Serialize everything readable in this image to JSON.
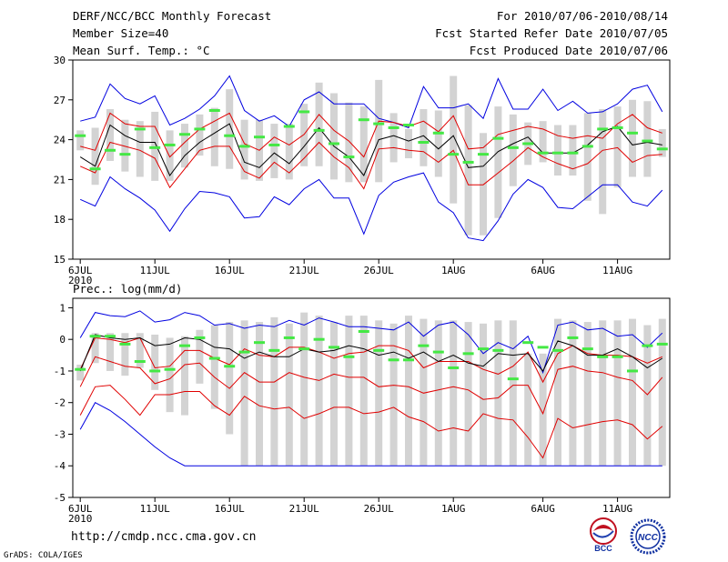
{
  "header": {
    "title": "DERF/NCC/BCC Monthly Forecast",
    "member_size": "Member Size=40",
    "variable": "Mean Surf. Temp.: °C",
    "for_period": "For 2010/07/06-2010/08/14",
    "fcst_started": "Fcst Started Refer Date 2010/07/05",
    "fcst_produced": "Fcst Produced Date 2010/07/06"
  },
  "footer": {
    "url": "http://cmdp.ncc.cma.gov.cn",
    "grads": "GrADS: COLA/IGES",
    "logo_bcc": "BCC",
    "logo_ncc": "NCC"
  },
  "colors": {
    "mean_line": "#000000",
    "spread_line": "#e00000",
    "extreme_line": "#0000e0",
    "box_fill": "#d3d3d3",
    "obs_marker": "#44e844"
  },
  "chart_data": [
    {
      "type": "line",
      "title": "Mean Surf. Temp.: °C",
      "xlabel": "",
      "ylabel": "",
      "x": [
        1,
        2,
        3,
        4,
        5,
        6,
        7,
        8,
        9,
        10,
        11,
        12,
        13,
        14,
        15,
        16,
        17,
        18,
        19,
        20,
        21,
        22,
        23,
        24,
        25,
        26,
        27,
        28,
        29,
        30,
        31,
        32,
        33,
        34,
        35,
        36,
        37,
        38,
        39,
        40
      ],
      "xlim": [
        0.5,
        40.5
      ],
      "ylim": [
        15,
        30
      ],
      "yticks": [
        15,
        18,
        21,
        24,
        27,
        30
      ],
      "ytick_labels": [
        "15",
        "18",
        "21",
        "24",
        "27",
        "30"
      ],
      "xtick_positions": [
        1,
        6,
        11,
        16,
        21,
        26,
        32,
        37
      ],
      "xtick_labels": [
        "6JUL",
        "11JUL",
        "16JUL",
        "21JUL",
        "26JUL",
        "1AUG",
        "6AUG",
        "11AUG"
      ],
      "xtick_sublabel": "2010",
      "series": [
        {
          "name": "max",
          "color": "#0000e0",
          "values": [
            25.4,
            25.7,
            28.2,
            27.1,
            26.7,
            27.3,
            25.1,
            25.6,
            26.3,
            27.3,
            28.8,
            26.2,
            25.4,
            25.8,
            25.0,
            27.0,
            27.6,
            26.7,
            26.7,
            26.7,
            25.6,
            25.3,
            24.9,
            28.0,
            26.4,
            26.4,
            26.7,
            25.6,
            28.6,
            26.3,
            26.3,
            27.8,
            26.2,
            26.9,
            26.0,
            26.1,
            26.7,
            27.8,
            28.1,
            26.1
          ]
        },
        {
          "name": "upper",
          "color": "#e00000",
          "values": [
            23.5,
            23.2,
            26.0,
            25.2,
            25.0,
            25.0,
            22.7,
            23.8,
            24.8,
            25.4,
            26.0,
            23.7,
            23.2,
            24.2,
            23.6,
            24.4,
            25.9,
            24.7,
            23.9,
            22.7,
            25.4,
            25.3,
            25.0,
            25.4,
            24.6,
            25.8,
            23.3,
            23.4,
            24.4,
            24.7,
            25.0,
            24.8,
            24.3,
            24.1,
            24.3,
            24.1,
            25.2,
            25.9,
            24.9,
            24.5
          ]
        },
        {
          "name": "mean",
          "color": "#000000",
          "values": [
            22.7,
            22.0,
            25.1,
            24.3,
            23.8,
            23.8,
            21.3,
            22.8,
            23.8,
            24.5,
            25.2,
            22.3,
            21.9,
            23.0,
            22.2,
            23.5,
            24.9,
            23.5,
            22.7,
            21.3,
            24.0,
            24.3,
            23.9,
            24.3,
            23.3,
            24.3,
            21.9,
            22.0,
            23.1,
            23.7,
            24.2,
            23.0,
            23.0,
            23.0,
            23.6,
            24.6,
            25.0,
            23.6,
            23.8,
            23.6
          ]
        },
        {
          "name": "lower",
          "color": "#e00000",
          "values": [
            22.0,
            21.5,
            23.8,
            23.5,
            23.2,
            22.6,
            20.4,
            21.8,
            23.2,
            23.5,
            23.5,
            21.6,
            21.1,
            22.3,
            21.5,
            22.6,
            23.8,
            22.7,
            21.9,
            20.3,
            23.3,
            23.4,
            23.2,
            23.1,
            22.3,
            23.2,
            20.6,
            20.6,
            21.5,
            22.4,
            23.4,
            22.7,
            22.2,
            21.8,
            22.2,
            23.2,
            23.4,
            22.3,
            22.8,
            22.9
          ]
        },
        {
          "name": "min",
          "color": "#0000e0",
          "values": [
            19.5,
            19.0,
            21.2,
            20.3,
            19.6,
            18.7,
            17.1,
            18.8,
            20.1,
            20.0,
            19.7,
            18.1,
            18.2,
            19.7,
            19.1,
            20.3,
            21.0,
            19.6,
            19.6,
            16.9,
            19.8,
            20.8,
            21.2,
            21.5,
            19.3,
            18.5,
            16.6,
            16.4,
            17.9,
            19.9,
            21.0,
            20.4,
            18.9,
            18.8,
            19.7,
            20.6,
            20.6,
            19.3,
            19.0,
            20.2
          ]
        }
      ],
      "boxes": {
        "low": [
          23.2,
          20.6,
          22.4,
          21.6,
          21.2,
          20.9,
          20.9,
          21.9,
          22.8,
          22.0,
          21.8,
          21.0,
          20.9,
          21.1,
          21.0,
          22.0,
          22.0,
          21.0,
          20.8,
          20.8,
          20.8,
          22.3,
          22.6,
          22.0,
          21.2,
          19.2,
          16.8,
          16.8,
          18.1,
          20.5,
          22.1,
          22.3,
          21.3,
          21.3,
          19.4,
          18.4,
          20.4,
          21.2,
          21.2,
          22.7
        ],
        "high": [
          24.7,
          24.9,
          26.3,
          25.5,
          25.4,
          26.1,
          24.7,
          25.2,
          25.9,
          26.4,
          27.8,
          25.5,
          25.5,
          25.2,
          25.2,
          26.7,
          28.3,
          27.5,
          26.8,
          26.5,
          28.5,
          26.0,
          24.8,
          26.3,
          26.2,
          28.8,
          26.6,
          24.5,
          26.5,
          25.9,
          25.3,
          25.4,
          25.1,
          25.1,
          26.0,
          26.3,
          26.5,
          27.0,
          26.9,
          24.8
        ]
      },
      "obs": [
        24.3,
        21.8,
        23.2,
        22.9,
        24.8,
        23.4,
        23.6,
        24.4,
        24.8,
        26.2,
        24.3,
        23.5,
        24.2,
        23.6,
        25.0,
        26.1,
        24.7,
        23.7,
        22.7,
        25.5,
        25.2,
        24.9,
        25.1,
        23.8,
        24.5,
        22.9,
        22.3,
        22.9,
        24.1,
        23.4,
        23.7,
        23.0,
        23.0,
        23.0,
        23.5,
        24.8,
        24.9,
        24.5,
        23.9,
        23.3
      ]
    },
    {
      "type": "line",
      "title": "Prec.: log(mm/d)",
      "xlabel": "",
      "ylabel": "",
      "x": [
        1,
        2,
        3,
        4,
        5,
        6,
        7,
        8,
        9,
        10,
        11,
        12,
        13,
        14,
        15,
        16,
        17,
        18,
        19,
        20,
        21,
        22,
        23,
        24,
        25,
        26,
        27,
        28,
        29,
        30,
        31,
        32,
        33,
        34,
        35,
        36,
        37,
        38,
        39,
        40
      ],
      "xlim": [
        0.5,
        40.5
      ],
      "ylim": [
        -5,
        1.3
      ],
      "yticks": [
        -5,
        -4,
        -3,
        -2,
        -1,
        0,
        1
      ],
      "ytick_labels": [
        "-5",
        "-4",
        "-3",
        "-2",
        "-1",
        "0",
        "1"
      ],
      "xtick_positions": [
        1,
        6,
        11,
        16,
        21,
        26,
        32,
        37
      ],
      "xtick_labels": [
        "6JUL",
        "11JUL",
        "16JUL",
        "21JUL",
        "26JUL",
        "1AUG",
        "6AUG",
        "11AUG"
      ],
      "xtick_sublabel": "2010",
      "series": [
        {
          "name": "max",
          "color": "#0000e0",
          "values": [
            0.05,
            0.85,
            0.75,
            0.72,
            0.9,
            0.55,
            0.62,
            0.85,
            0.75,
            0.45,
            0.5,
            0.35,
            0.45,
            0.4,
            0.6,
            0.45,
            0.68,
            0.55,
            0.4,
            0.4,
            0.35,
            0.3,
            0.55,
            0.1,
            0.45,
            0.55,
            0.15,
            -0.45,
            -0.1,
            -0.3,
            0.1,
            -1.05,
            0.45,
            0.55,
            0.3,
            0.35,
            0.1,
            0.15,
            -0.25,
            0.2
          ]
        },
        {
          "name": "upper",
          "color": "#e00000",
          "values": [
            -0.95,
            0.05,
            0.0,
            -0.1,
            0.05,
            -0.9,
            -0.85,
            -0.35,
            -0.35,
            -0.6,
            -0.8,
            -0.3,
            -0.5,
            -0.55,
            -0.25,
            -0.25,
            -0.4,
            -0.6,
            -0.45,
            -0.4,
            -0.2,
            -0.2,
            -0.35,
            -0.9,
            -0.7,
            -0.7,
            -0.7,
            -0.95,
            -1.1,
            -0.85,
            -0.4,
            -1.35,
            -0.45,
            -0.2,
            -0.45,
            -0.5,
            -0.5,
            -0.55,
            -0.75,
            -0.55
          ]
        },
        {
          "name": "mean",
          "color": "#000000",
          "values": [
            -1.0,
            0.15,
            0.05,
            0.0,
            0.05,
            -0.2,
            -0.15,
            0.05,
            0.0,
            -0.25,
            -0.3,
            -0.6,
            -0.4,
            -0.55,
            -0.55,
            -0.3,
            -0.4,
            -0.35,
            -0.2,
            -0.3,
            -0.5,
            -0.4,
            -0.6,
            -0.4,
            -0.7,
            -0.5,
            -0.75,
            -0.85,
            -0.45,
            -0.5,
            -0.45,
            -1.0,
            -0.05,
            -0.2,
            -0.5,
            -0.5,
            -0.3,
            -0.55,
            -0.9,
            -0.6
          ]
        },
        {
          "name": "lower",
          "color": "#e00000",
          "values": [
            -1.5,
            -0.55,
            -0.7,
            -0.85,
            -0.9,
            -1.4,
            -1.25,
            -0.8,
            -0.75,
            -1.2,
            -1.55,
            -1.05,
            -1.35,
            -1.35,
            -1.05,
            -1.2,
            -1.3,
            -1.1,
            -1.2,
            -1.2,
            -1.5,
            -1.45,
            -1.5,
            -1.7,
            -1.6,
            -1.5,
            -1.6,
            -1.9,
            -1.85,
            -1.45,
            -1.45,
            -2.35,
            -0.95,
            -0.85,
            -1.0,
            -1.05,
            -1.2,
            -1.3,
            -1.75,
            -1.2
          ]
        },
        {
          "name": "min",
          "color": "#0000e0",
          "values": [
            -2.85,
            -2.0,
            -2.25,
            -2.6,
            -3.0,
            -3.4,
            -3.75,
            -4.0,
            -4.0,
            -4.0,
            -4.0,
            -4.0,
            -4.0,
            -4.0,
            -4.0,
            -4.0,
            -4.0,
            -4.0,
            -4.0,
            -4.0,
            -4.0,
            -4.0,
            -4.0,
            -4.0,
            -4.0,
            -4.0,
            -4.0,
            -4.0,
            -4.0,
            -4.0,
            -4.0,
            -4.0,
            -4.0,
            -4.0,
            -4.0,
            -4.0,
            -4.0,
            -4.0,
            -4.0,
            -4.0
          ]
        }
      ],
      "lowest_series": {
        "name": "lowest",
        "color": "#e00000",
        "values": [
          -2.4,
          -1.5,
          -1.45,
          -1.9,
          -2.4,
          -1.75,
          -1.75,
          -1.65,
          -1.65,
          -2.1,
          -2.4,
          -1.8,
          -2.1,
          -2.2,
          -2.15,
          -2.5,
          -2.35,
          -2.15,
          -2.15,
          -2.35,
          -2.3,
          -2.15,
          -2.45,
          -2.6,
          -2.9,
          -2.8,
          -2.9,
          -2.35,
          -2.5,
          -2.55,
          -3.1,
          -3.75,
          -2.5,
          -2.8,
          -2.7,
          -2.6,
          -2.55,
          -2.7,
          -3.15,
          -2.75
        ]
      },
      "boxes": {
        "low": [
          -1.3,
          -0.75,
          -1.0,
          -1.15,
          -0.9,
          -1.6,
          -2.3,
          -2.4,
          -1.4,
          -2.2,
          -3.0,
          -4.0,
          -4.0,
          -4.0,
          -4.0,
          -4.0,
          -4.0,
          -4.0,
          -4.0,
          -4.0,
          -4.0,
          -4.0,
          -4.0,
          -4.0,
          -4.0,
          -4.0,
          -4.0,
          -4.0,
          -4.0,
          -4.0,
          -4.0,
          -4.0,
          -4.0,
          -4.0,
          -4.0,
          -4.0,
          -4.0,
          -4.0,
          -4.0,
          -4.0
        ],
        "high": [
          -0.8,
          0.2,
          0.2,
          0.2,
          0.2,
          0.15,
          0.05,
          0.1,
          0.3,
          0.45,
          0.55,
          0.6,
          0.55,
          0.7,
          0.5,
          0.85,
          0.75,
          0.55,
          0.75,
          0.75,
          0.6,
          0.5,
          0.75,
          0.65,
          0.6,
          0.6,
          0.55,
          0.5,
          0.6,
          0.6,
          -0.45,
          -0.45,
          0.65,
          0.6,
          0.55,
          0.6,
          0.6,
          0.65,
          0.45,
          0.65
        ]
      },
      "obs": [
        -0.95,
        0.1,
        0.1,
        -0.15,
        -0.7,
        -1.0,
        -0.95,
        -0.2,
        0.05,
        -0.6,
        -0.85,
        -0.4,
        -0.1,
        -0.35,
        0.05,
        -0.3,
        0.0,
        -0.25,
        -0.55,
        0.25,
        -0.35,
        -0.65,
        -0.65,
        -0.2,
        -0.4,
        -0.9,
        -0.45,
        -0.3,
        -0.35,
        -1.25,
        -0.1,
        -0.25,
        -0.35,
        0.05,
        -0.3,
        -0.55,
        -0.55,
        -1.0,
        -0.2,
        -0.15
      ]
    }
  ]
}
